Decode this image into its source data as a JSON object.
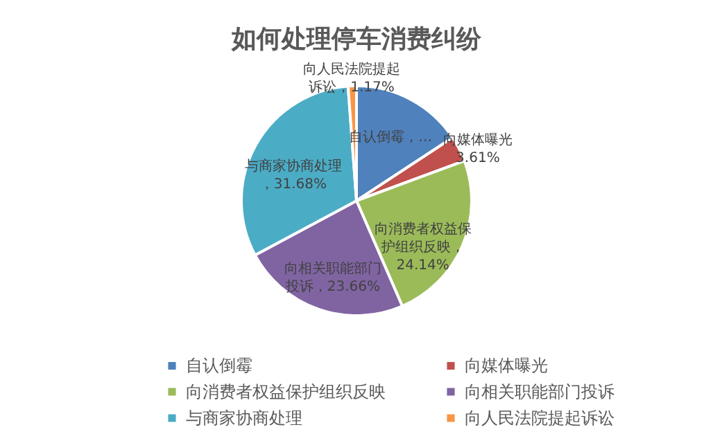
{
  "chart_data": {
    "type": "pie",
    "title": "如何处理停车消费纠纷",
    "categories": [
      "自认倒霉",
      "向媒体曝光",
      "向消费者权益保护组织反映",
      "向相关职能部门投诉",
      "与商家协商处理",
      "向人民法院提起诉讼"
    ],
    "values": [
      15.74,
      3.61,
      24.14,
      23.66,
      31.68,
      1.17
    ],
    "colors": [
      "#4f81bd",
      "#c0504d",
      "#9bbb59",
      "#8064a2",
      "#4bacc6",
      "#f79646"
    ],
    "value_labels": [
      "自认倒霉，…",
      "向媒体曝光3.61%",
      "向消费者权益保护组织反映，24.14%",
      "向相关职能部门投诉，23.66%",
      "与商家协商处理，31.68%",
      "向人民法院提起诉讼，1.17%"
    ],
    "legend": "bottom"
  }
}
